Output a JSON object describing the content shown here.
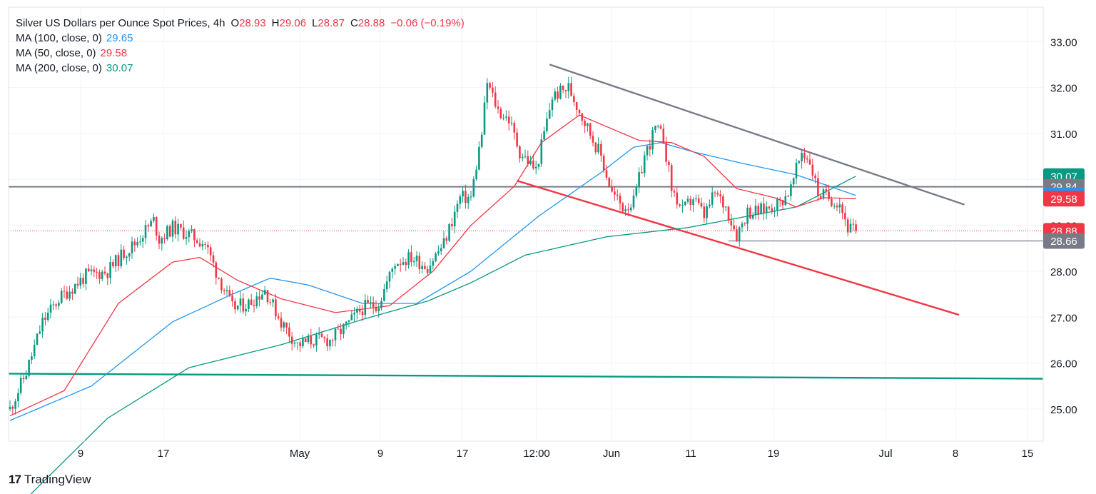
{
  "legend": {
    "symbol": "Silver US Dollars per Ounce Spot Prices, 4h",
    "ohlc": [
      {
        "label": "O",
        "value": "28.93"
      },
      {
        "label": "H",
        "value": "29.06"
      },
      {
        "label": "L",
        "value": "28.87"
      },
      {
        "label": "C",
        "value": "28.88"
      }
    ],
    "change": "−0.06 (−0.19%)",
    "indicators": [
      {
        "name": "MA (100, close, 0)",
        "value": "29.65",
        "color": "#2196f3"
      },
      {
        "name": "MA (50, close, 0)",
        "value": "29.58",
        "color": "#f23645"
      },
      {
        "name": "MA (200, close, 0)",
        "value": "30.07",
        "color": "#089981"
      }
    ]
  },
  "brand": {
    "logo": "17",
    "name": "TradingView"
  },
  "price_tags": [
    {
      "value": "30.07",
      "bg": "#089981"
    },
    {
      "value": "29.84",
      "bg": "#787b86"
    },
    {
      "value": "29.65",
      "bg": "#2196f3"
    },
    {
      "value": "29.58",
      "bg": "#f23645"
    },
    {
      "value": "28.88",
      "bg": "#f23645"
    },
    {
      "value": "28.66",
      "bg": "#787b86"
    }
  ],
  "chart_data": {
    "type": "candlestick",
    "title": "Silver US Dollars per Ounce Spot Prices, 4h",
    "y_axis_side": "right",
    "ylim": [
      24.3,
      33.75
    ],
    "y_ticks": [
      "25.00",
      "26.00",
      "27.00",
      "28.00",
      "29.00",
      "30.00",
      "31.00",
      "32.00",
      "33.00"
    ],
    "x_tick_labels": [
      "9",
      "17",
      "May",
      "9",
      "17",
      "12:00",
      "Jun",
      "11",
      "19",
      "Jul",
      "8",
      "15"
    ],
    "grid": true,
    "colors": {
      "up": "#089981",
      "down": "#f23645",
      "ma50": "#f23645",
      "ma100": "#2196f3",
      "ma200": "#089981",
      "line": "#787b86"
    },
    "price_anchors": [
      [
        0,
        25.0
      ],
      [
        6,
        25.8
      ],
      [
        12,
        26.9
      ],
      [
        18,
        27.4
      ],
      [
        28,
        27.9
      ],
      [
        36,
        28.0
      ],
      [
        42,
        28.4
      ],
      [
        46,
        28.6
      ],
      [
        50,
        28.9
      ],
      [
        53,
        29.1
      ],
      [
        55,
        28.7
      ],
      [
        60,
        28.95
      ],
      [
        66,
        28.8
      ],
      [
        72,
        28.6
      ],
      [
        76,
        28.0
      ],
      [
        82,
        27.2
      ],
      [
        88,
        27.3
      ],
      [
        94,
        27.6
      ],
      [
        100,
        26.9
      ],
      [
        106,
        26.4
      ],
      [
        112,
        26.5
      ],
      [
        118,
        26.5
      ],
      [
        124,
        26.8
      ],
      [
        130,
        27.2
      ],
      [
        136,
        27.3
      ],
      [
        142,
        28.2
      ],
      [
        148,
        28.3
      ],
      [
        154,
        28.1
      ],
      [
        160,
        28.6
      ],
      [
        166,
        29.6
      ],
      [
        170,
        29.6
      ],
      [
        174,
        31.0
      ],
      [
        176,
        32.1
      ],
      [
        180,
        31.5
      ],
      [
        184,
        31.3
      ],
      [
        188,
        30.6
      ],
      [
        194,
        30.2
      ],
      [
        200,
        31.8
      ],
      [
        206,
        32.0
      ],
      [
        210,
        31.5
      ],
      [
        214,
        31.0
      ],
      [
        218,
        30.5
      ],
      [
        222,
        29.7
      ],
      [
        226,
        29.4
      ],
      [
        230,
        29.5
      ],
      [
        234,
        30.5
      ],
      [
        238,
        31.1
      ],
      [
        241,
        30.9
      ],
      [
        244,
        29.8
      ],
      [
        248,
        29.3
      ],
      [
        252,
        29.6
      ],
      [
        256,
        29.2
      ],
      [
        260,
        29.7
      ],
      [
        264,
        29.4
      ],
      [
        268,
        28.8
      ],
      [
        272,
        29.3
      ],
      [
        276,
        29.3
      ],
      [
        280,
        29.4
      ],
      [
        284,
        29.5
      ],
      [
        288,
        29.8
      ],
      [
        292,
        30.6
      ],
      [
        295,
        30.4
      ],
      [
        298,
        29.7
      ],
      [
        302,
        29.6
      ],
      [
        306,
        29.5
      ],
      [
        309,
        28.95
      ],
      [
        312,
        28.88
      ]
    ],
    "ma200_anchors": [
      [
        0,
        22.7
      ],
      [
        36,
        24.8
      ],
      [
        66,
        25.9
      ],
      [
        100,
        26.4
      ],
      [
        130,
        26.95
      ],
      [
        154,
        27.35
      ],
      [
        170,
        27.75
      ],
      [
        190,
        28.35
      ],
      [
        220,
        28.75
      ],
      [
        250,
        28.95
      ],
      [
        290,
        29.4
      ],
      [
        312,
        30.07
      ]
    ],
    "ma100_anchors": [
      [
        0,
        24.75
      ],
      [
        30,
        25.5
      ],
      [
        60,
        26.9
      ],
      [
        82,
        27.5
      ],
      [
        96,
        27.85
      ],
      [
        110,
        27.7
      ],
      [
        130,
        27.3
      ],
      [
        150,
        27.3
      ],
      [
        170,
        28.0
      ],
      [
        195,
        29.2
      ],
      [
        218,
        30.15
      ],
      [
        230,
        30.7
      ],
      [
        240,
        30.8
      ],
      [
        252,
        30.6
      ],
      [
        270,
        30.35
      ],
      [
        290,
        30.1
      ],
      [
        312,
        29.65
      ]
    ],
    "ma50_anchors": [
      [
        0,
        24.85
      ],
      [
        20,
        25.4
      ],
      [
        40,
        27.3
      ],
      [
        60,
        28.2
      ],
      [
        70,
        28.3
      ],
      [
        84,
        27.8
      ],
      [
        100,
        27.4
      ],
      [
        120,
        27.1
      ],
      [
        140,
        27.25
      ],
      [
        156,
        28.0
      ],
      [
        170,
        29.0
      ],
      [
        186,
        29.85
      ],
      [
        196,
        30.8
      ],
      [
        210,
        31.4
      ],
      [
        220,
        31.15
      ],
      [
        232,
        30.85
      ],
      [
        244,
        30.8
      ],
      [
        256,
        30.5
      ],
      [
        268,
        29.8
      ],
      [
        282,
        29.6
      ],
      [
        290,
        29.4
      ],
      [
        300,
        29.6
      ],
      [
        312,
        29.58
      ]
    ],
    "resistance_trendline": {
      "from": [
        199,
        32.5
      ],
      "to": [
        352,
        29.45
      ]
    },
    "support_trendline": {
      "from": [
        187,
        29.97
      ],
      "to": [
        350,
        27.05
      ]
    },
    "horizontal_level": 29.84,
    "long_ma_line": {
      "from": [
        0,
        25.77
      ],
      "to": [
        382,
        25.66
      ]
    },
    "recent_low_line": {
      "from": [
        265,
        28.66
      ],
      "to": [
        382,
        28.66
      ]
    },
    "last_close": 28.88
  }
}
